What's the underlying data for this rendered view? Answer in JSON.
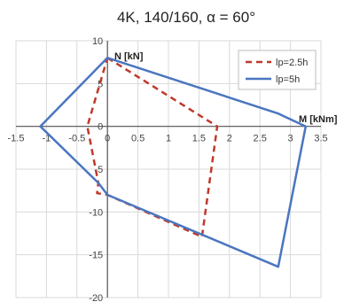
{
  "chart_data": {
    "type": "line",
    "title": "4K, 140/160, α = 60°",
    "xlabel": "M [kNm]",
    "ylabel": "N [kN]",
    "xlim": [
      -1.5,
      3.5
    ],
    "ylim": [
      -20,
      10
    ],
    "x_ticks": [
      "-1.5",
      "-1",
      "-0.5",
      "0",
      "0.5",
      "1",
      "1.5",
      "2",
      "2.5",
      "3",
      "3.5"
    ],
    "y_ticks": [
      "10",
      "5",
      "0",
      "-5",
      "-10",
      "-15",
      "-20"
    ],
    "grid": true,
    "legend_position": "top-right",
    "series": [
      {
        "name": "lp=2.5h",
        "color": "#c0392b",
        "dash": "dashed",
        "points": [
          [
            0,
            8
          ],
          [
            1.8,
            0
          ],
          [
            1.55,
            -12.9
          ],
          [
            0,
            -8
          ],
          [
            -0.17,
            -7.8
          ],
          [
            -0.15,
            -6.6
          ],
          [
            -0.33,
            0
          ],
          [
            0,
            8
          ]
        ]
      },
      {
        "name": "lp=5h",
        "color": "#4a76c0",
        "dash": "solid",
        "points": [
          [
            0,
            8
          ],
          [
            2.8,
            1.5
          ],
          [
            3.25,
            0
          ],
          [
            2.8,
            -16.4
          ],
          [
            0,
            -8
          ],
          [
            -0.15,
            -6.6
          ],
          [
            -1.1,
            0
          ],
          [
            0,
            8
          ]
        ]
      }
    ]
  }
}
